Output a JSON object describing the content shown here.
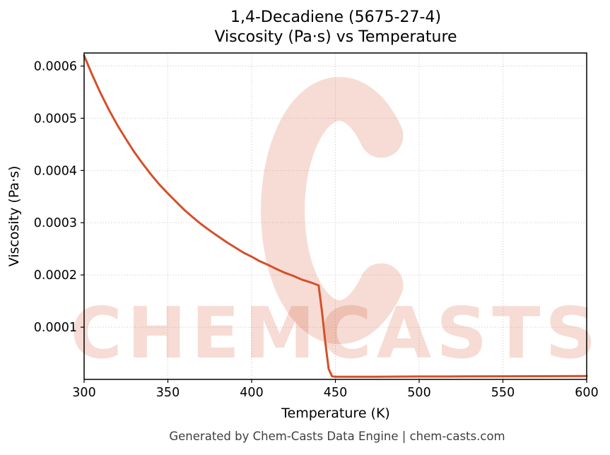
{
  "footer": {
    "text": "Generated by Chem-Casts Data Engine | chem-casts.com"
  },
  "watermark": {
    "text": "CHEMCASTS",
    "logo": "chemcasts-c-swirl",
    "color": "#d4502a",
    "opacity": 0.2
  },
  "chart_data": {
    "type": "line",
    "title": "1,4-Decadiene (5675-27-4)",
    "subtitle": "Viscosity (Pa·s) vs Temperature",
    "xlabel": "Temperature (K)",
    "ylabel": "Viscosity (Pa·s)",
    "xlim": [
      300,
      600
    ],
    "ylim": [
      0,
      0.000625
    ],
    "x_ticks": [
      300,
      350,
      400,
      450,
      500,
      550,
      600
    ],
    "x_tick_labels": [
      "300",
      "350",
      "400",
      "450",
      "500",
      "550",
      "600"
    ],
    "y_ticks": [
      0.0001,
      0.0002,
      0.0003,
      0.0004,
      0.0005,
      0.0006
    ],
    "y_tick_labels": [
      "0.0001",
      "0.0002",
      "0.0003",
      "0.0004",
      "0.0005",
      "0.0006"
    ],
    "grid": true,
    "legend": "none",
    "line_color": "#d4502a",
    "line_width": 3,
    "series": [
      {
        "name": "Viscosity (Pa·s)",
        "points": [
          [
            300,
            0.00062
          ],
          [
            305,
            0.000582
          ],
          [
            310,
            0.000547
          ],
          [
            315,
            0.000515
          ],
          [
            320,
            0.000486
          ],
          [
            325,
            0.00046
          ],
          [
            330,
            0.000435
          ],
          [
            335,
            0.000413
          ],
          [
            340,
            0.000392
          ],
          [
            345,
            0.000373
          ],
          [
            350,
            0.000356
          ],
          [
            355,
            0.00034
          ],
          [
            360,
            0.000324
          ],
          [
            365,
            0.00031
          ],
          [
            370,
            0.000297
          ],
          [
            375,
            0.000285
          ],
          [
            380,
            0.000274
          ],
          [
            385,
            0.000263
          ],
          [
            390,
            0.000253
          ],
          [
            395,
            0.000243
          ],
          [
            400,
            0.000235
          ],
          [
            405,
            0.000226
          ],
          [
            410,
            0.000219
          ],
          [
            415,
            0.000211
          ],
          [
            420,
            0.000204
          ],
          [
            425,
            0.000198
          ],
          [
            430,
            0.000191
          ],
          [
            435,
            0.000186
          ],
          [
            440,
            0.00018
          ],
          [
            442,
            0.00013
          ],
          [
            444,
            7e-05
          ],
          [
            446,
            2e-05
          ],
          [
            448,
            6e-06
          ],
          [
            450,
            5e-06
          ],
          [
            475,
            5.2e-06
          ],
          [
            500,
            5.5e-06
          ],
          [
            525,
            5.7e-06
          ],
          [
            550,
            5.9e-06
          ],
          [
            575,
            6.1e-06
          ],
          [
            600,
            6.3e-06
          ]
        ]
      }
    ]
  }
}
